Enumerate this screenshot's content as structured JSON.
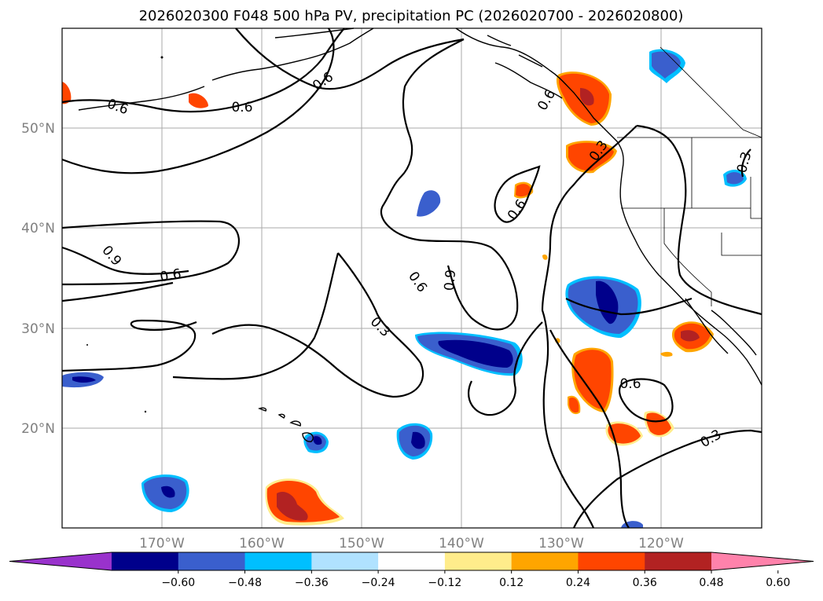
{
  "title": "2026020300 F048 500 hPa PV, precipitation PC (2026020700 - 2026020800)",
  "lat_ticks": [
    "50°N",
    "40°N",
    "30°N",
    "20°N"
  ],
  "lon_ticks": [
    "170°W",
    "160°W",
    "150°W",
    "140°W",
    "130°W",
    "120°W"
  ],
  "colorbar": {
    "ticks": [
      "−0.60",
      "−0.48",
      "−0.36",
      "−0.24",
      "−0.12",
      "0.12",
      "0.24",
      "0.36",
      "0.48",
      "0.60"
    ],
    "colors": [
      "#9932cc",
      "#00008b",
      "#3a5fcd",
      "#00bfff",
      "#b0e2ff",
      "#ffffff",
      "#ffec8b",
      "#ffa500",
      "#ff4500",
      "#b22222",
      "#ff82ab"
    ]
  },
  "contour_labels": [
    "0.6",
    "0.6",
    "0.6",
    "0.9",
    "0.6",
    "0.6",
    "0.6",
    "0.9",
    "0.3",
    "0.3",
    "0.6",
    "0.3",
    "0.3",
    "0.6"
  ],
  "colors": {
    "strong_neg": "#00008b",
    "mid_neg": "#3a5fcd",
    "light_neg": "#00bfff",
    "strong_pos": "#b22222",
    "mid_pos": "#ff4500",
    "light_pos": "#ffa500",
    "faint_pos": "#ffec8b"
  }
}
